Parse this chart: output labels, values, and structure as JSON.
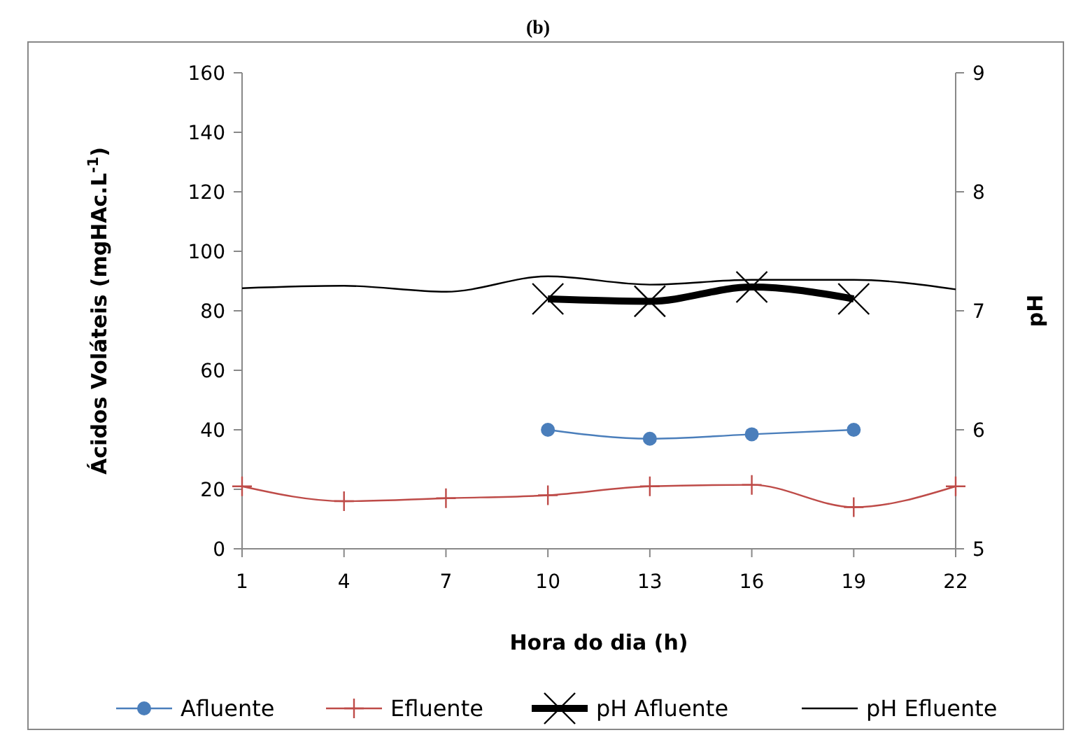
{
  "chart_data": {
    "type": "line",
    "title": "(b)",
    "xlabel": "Hora do dia (h)",
    "ylabel": "Ácidos Voláteis (mgHAc.L$^{-1}$)",
    "y2label": "pH",
    "x": [
      1,
      4,
      7,
      10,
      13,
      16,
      19,
      22
    ],
    "xlim": [
      1,
      22
    ],
    "xticks": [
      1,
      4,
      7,
      10,
      13,
      16,
      19,
      22
    ],
    "ylim": [
      0,
      160
    ],
    "yticks": [
      0,
      20,
      40,
      60,
      80,
      100,
      120,
      140,
      160
    ],
    "y2lim": [
      5,
      9
    ],
    "y2ticks": [
      5,
      6,
      7,
      8,
      9
    ],
    "grid": false,
    "legend": "bottom",
    "series": [
      {
        "name": "Afluente",
        "color": "#4a7ebb",
        "marker": "circle",
        "values": [
          null,
          null,
          null,
          40,
          37,
          38.5,
          40,
          null
        ]
      },
      {
        "name": "Efluente",
        "color": "#be4b48",
        "marker": "cross",
        "values": [
          21,
          16,
          17,
          18,
          21,
          21.5,
          14,
          21
        ]
      },
      {
        "name": "pH Afluente",
        "color": "#000000",
        "marker": "x",
        "axis": "y2",
        "values": [
          null,
          null,
          null,
          7.1,
          7.08,
          7.2,
          7.1,
          null
        ]
      },
      {
        "name": "pH Efluente",
        "color": "#000000",
        "marker": "none",
        "axis": "y2",
        "values": [
          7.19,
          7.21,
          7.16,
          7.29,
          7.22,
          7.26,
          7.26,
          7.18
        ]
      }
    ]
  }
}
